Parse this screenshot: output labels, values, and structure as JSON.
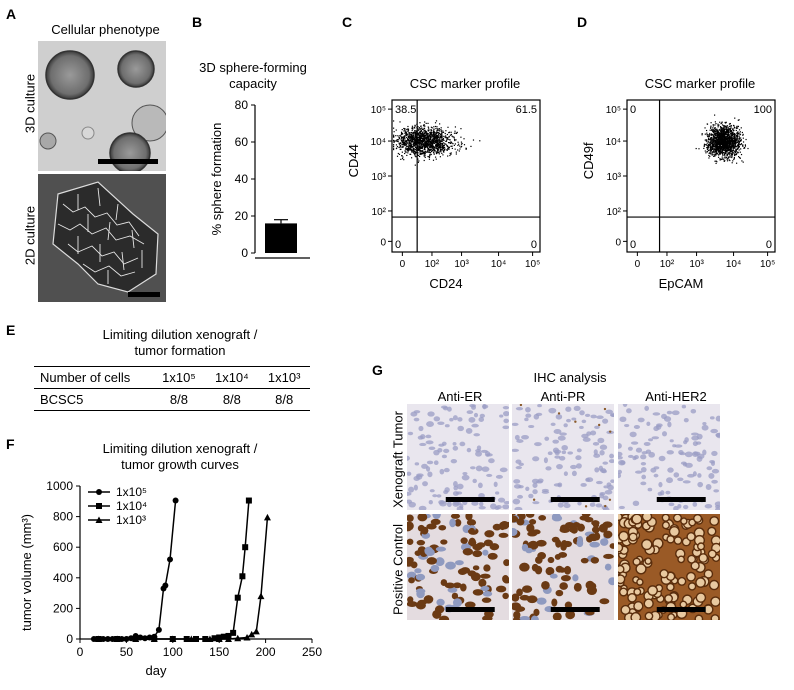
{
  "panels": {
    "A": {
      "letter": "A",
      "title": "Cellular phenotype",
      "row_labels": [
        "3D culture",
        "2D culture"
      ]
    },
    "B": {
      "letter": "B",
      "title_line1": "3D sphere-forming",
      "title_line2": "capacity"
    },
    "C": {
      "letter": "C",
      "title": "CSC marker profile"
    },
    "D": {
      "letter": "D",
      "title": "CSC marker profile"
    },
    "E": {
      "letter": "E",
      "title_line1": "Limiting dilution xenograft /",
      "title_line2": "tumor formation",
      "header_label": "Number of cells",
      "columns": [
        "1x10⁵",
        "1x10⁴",
        "1x10³"
      ],
      "rows": [
        {
          "name": "BCSC5",
          "values": [
            "8/8",
            "8/8",
            "8/8"
          ]
        }
      ]
    },
    "F": {
      "letter": "F",
      "title_line1": "Limiting dilution xenograft /",
      "title_line2": "tumor growth curves"
    },
    "G": {
      "letter": "G",
      "title": "IHC analysis",
      "columns": [
        "Anti-ER",
        "Anti-PR",
        "Anti-HER2"
      ],
      "rows": [
        "Xenograft Tumor",
        "Positive Control"
      ]
    }
  },
  "chart_data": [
    {
      "id": "B",
      "type": "bar",
      "categories": [
        ""
      ],
      "values": [
        16
      ],
      "error": [
        2
      ],
      "ylabel": "% sphere formation",
      "ylim": [
        0,
        80
      ],
      "yticks": [
        0,
        20,
        40,
        60,
        80
      ]
    },
    {
      "id": "C",
      "type": "scatter",
      "xlabel": "CD24",
      "ylabel": "CD44",
      "log_scale": true,
      "xticks": [
        "0",
        "10²",
        "10³",
        "10⁴",
        "10⁵"
      ],
      "yticks": [
        "0",
        "10²",
        "10³",
        "10⁴",
        "10⁵"
      ],
      "quadrants": {
        "top_left": "38.5",
        "top_right": "61.5",
        "bottom_left": "0",
        "bottom_right": "0"
      },
      "cluster": {
        "center_x_log": 1.9,
        "center_y_log": 4.0
      }
    },
    {
      "id": "D",
      "type": "scatter",
      "xlabel": "EpCAM",
      "ylabel": "CD49f",
      "log_scale": true,
      "xticks": [
        "0",
        "10²",
        "10³",
        "10⁴",
        "10⁵"
      ],
      "yticks": [
        "0",
        "10²",
        "10³",
        "10⁴",
        "10⁵"
      ],
      "quadrants": {
        "top_left": "0",
        "top_right": "100",
        "bottom_left": "0",
        "bottom_right": "0"
      },
      "cluster": {
        "center_x_log": 4.1,
        "center_y_log": 4.0
      }
    },
    {
      "id": "F",
      "type": "line",
      "xlabel": "day",
      "ylabel": "tumor volume (mm³)",
      "xlim": [
        0,
        250
      ],
      "ylim": [
        0,
        1000
      ],
      "xticks": [
        0,
        50,
        100,
        150,
        200,
        250
      ],
      "yticks": [
        0,
        200,
        400,
        600,
        800,
        1000
      ],
      "series": [
        {
          "name": "1x10⁵",
          "marker": "circle",
          "points": [
            [
              15,
              0
            ],
            [
              20,
              0
            ],
            [
              25,
              0
            ],
            [
              30,
              0
            ],
            [
              35,
              0
            ],
            [
              40,
              0
            ],
            [
              45,
              0
            ],
            [
              50,
              0
            ],
            [
              55,
              5
            ],
            [
              60,
              20
            ],
            [
              65,
              10
            ],
            [
              70,
              5
            ],
            [
              75,
              10
            ],
            [
              80,
              15
            ],
            [
              85,
              60
            ],
            [
              90,
              330
            ],
            [
              92,
              350
            ],
            [
              97,
              520
            ],
            [
              103,
              905
            ]
          ]
        },
        {
          "name": "1x10⁴",
          "marker": "square",
          "points": [
            [
              20,
              0
            ],
            [
              40,
              0
            ],
            [
              60,
              0
            ],
            [
              80,
              0
            ],
            [
              100,
              0
            ],
            [
              115,
              0
            ],
            [
              125,
              0
            ],
            [
              135,
              0
            ],
            [
              145,
              5
            ],
            [
              150,
              10
            ],
            [
              155,
              15
            ],
            [
              160,
              20
            ],
            [
              165,
              40
            ],
            [
              170,
              270
            ],
            [
              175,
              410
            ],
            [
              178,
              600
            ],
            [
              182,
              905
            ]
          ]
        },
        {
          "name": "1x10³",
          "marker": "triangle",
          "points": [
            [
              20,
              0
            ],
            [
              40,
              0
            ],
            [
              60,
              0
            ],
            [
              80,
              0
            ],
            [
              100,
              0
            ],
            [
              120,
              0
            ],
            [
              140,
              0
            ],
            [
              150,
              0
            ],
            [
              160,
              0
            ],
            [
              170,
              5
            ],
            [
              180,
              10
            ],
            [
              185,
              30
            ],
            [
              190,
              50
            ],
            [
              195,
              280
            ],
            [
              202,
              795
            ]
          ]
        }
      ]
    }
  ]
}
